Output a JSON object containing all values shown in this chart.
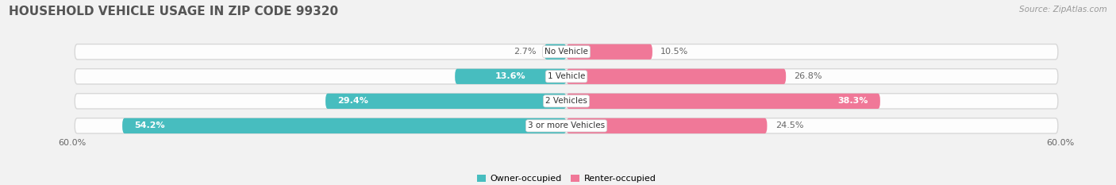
{
  "title": "HOUSEHOLD VEHICLE USAGE IN ZIP CODE 99320",
  "source": "Source: ZipAtlas.com",
  "categories": [
    "No Vehicle",
    "1 Vehicle",
    "2 Vehicles",
    "3 or more Vehicles"
  ],
  "owner_values": [
    2.7,
    13.6,
    29.4,
    54.2
  ],
  "renter_values": [
    10.5,
    26.8,
    38.3,
    24.5
  ],
  "owner_color": "#47BDBF",
  "renter_color": "#F07898",
  "axis_max": 60.0,
  "bg_color": "#f2f2f2",
  "bar_bg_color": "#e8e8e8",
  "label_color_dark": "#666666",
  "title_color": "#555555",
  "source_color": "#999999",
  "legend_owner": "Owner-occupied",
  "legend_renter": "Renter-occupied",
  "axis_label_left": "60.0%",
  "axis_label_right": "60.0%",
  "bar_height": 0.62,
  "title_fontsize": 11,
  "label_fontsize": 8,
  "source_fontsize": 7.5
}
